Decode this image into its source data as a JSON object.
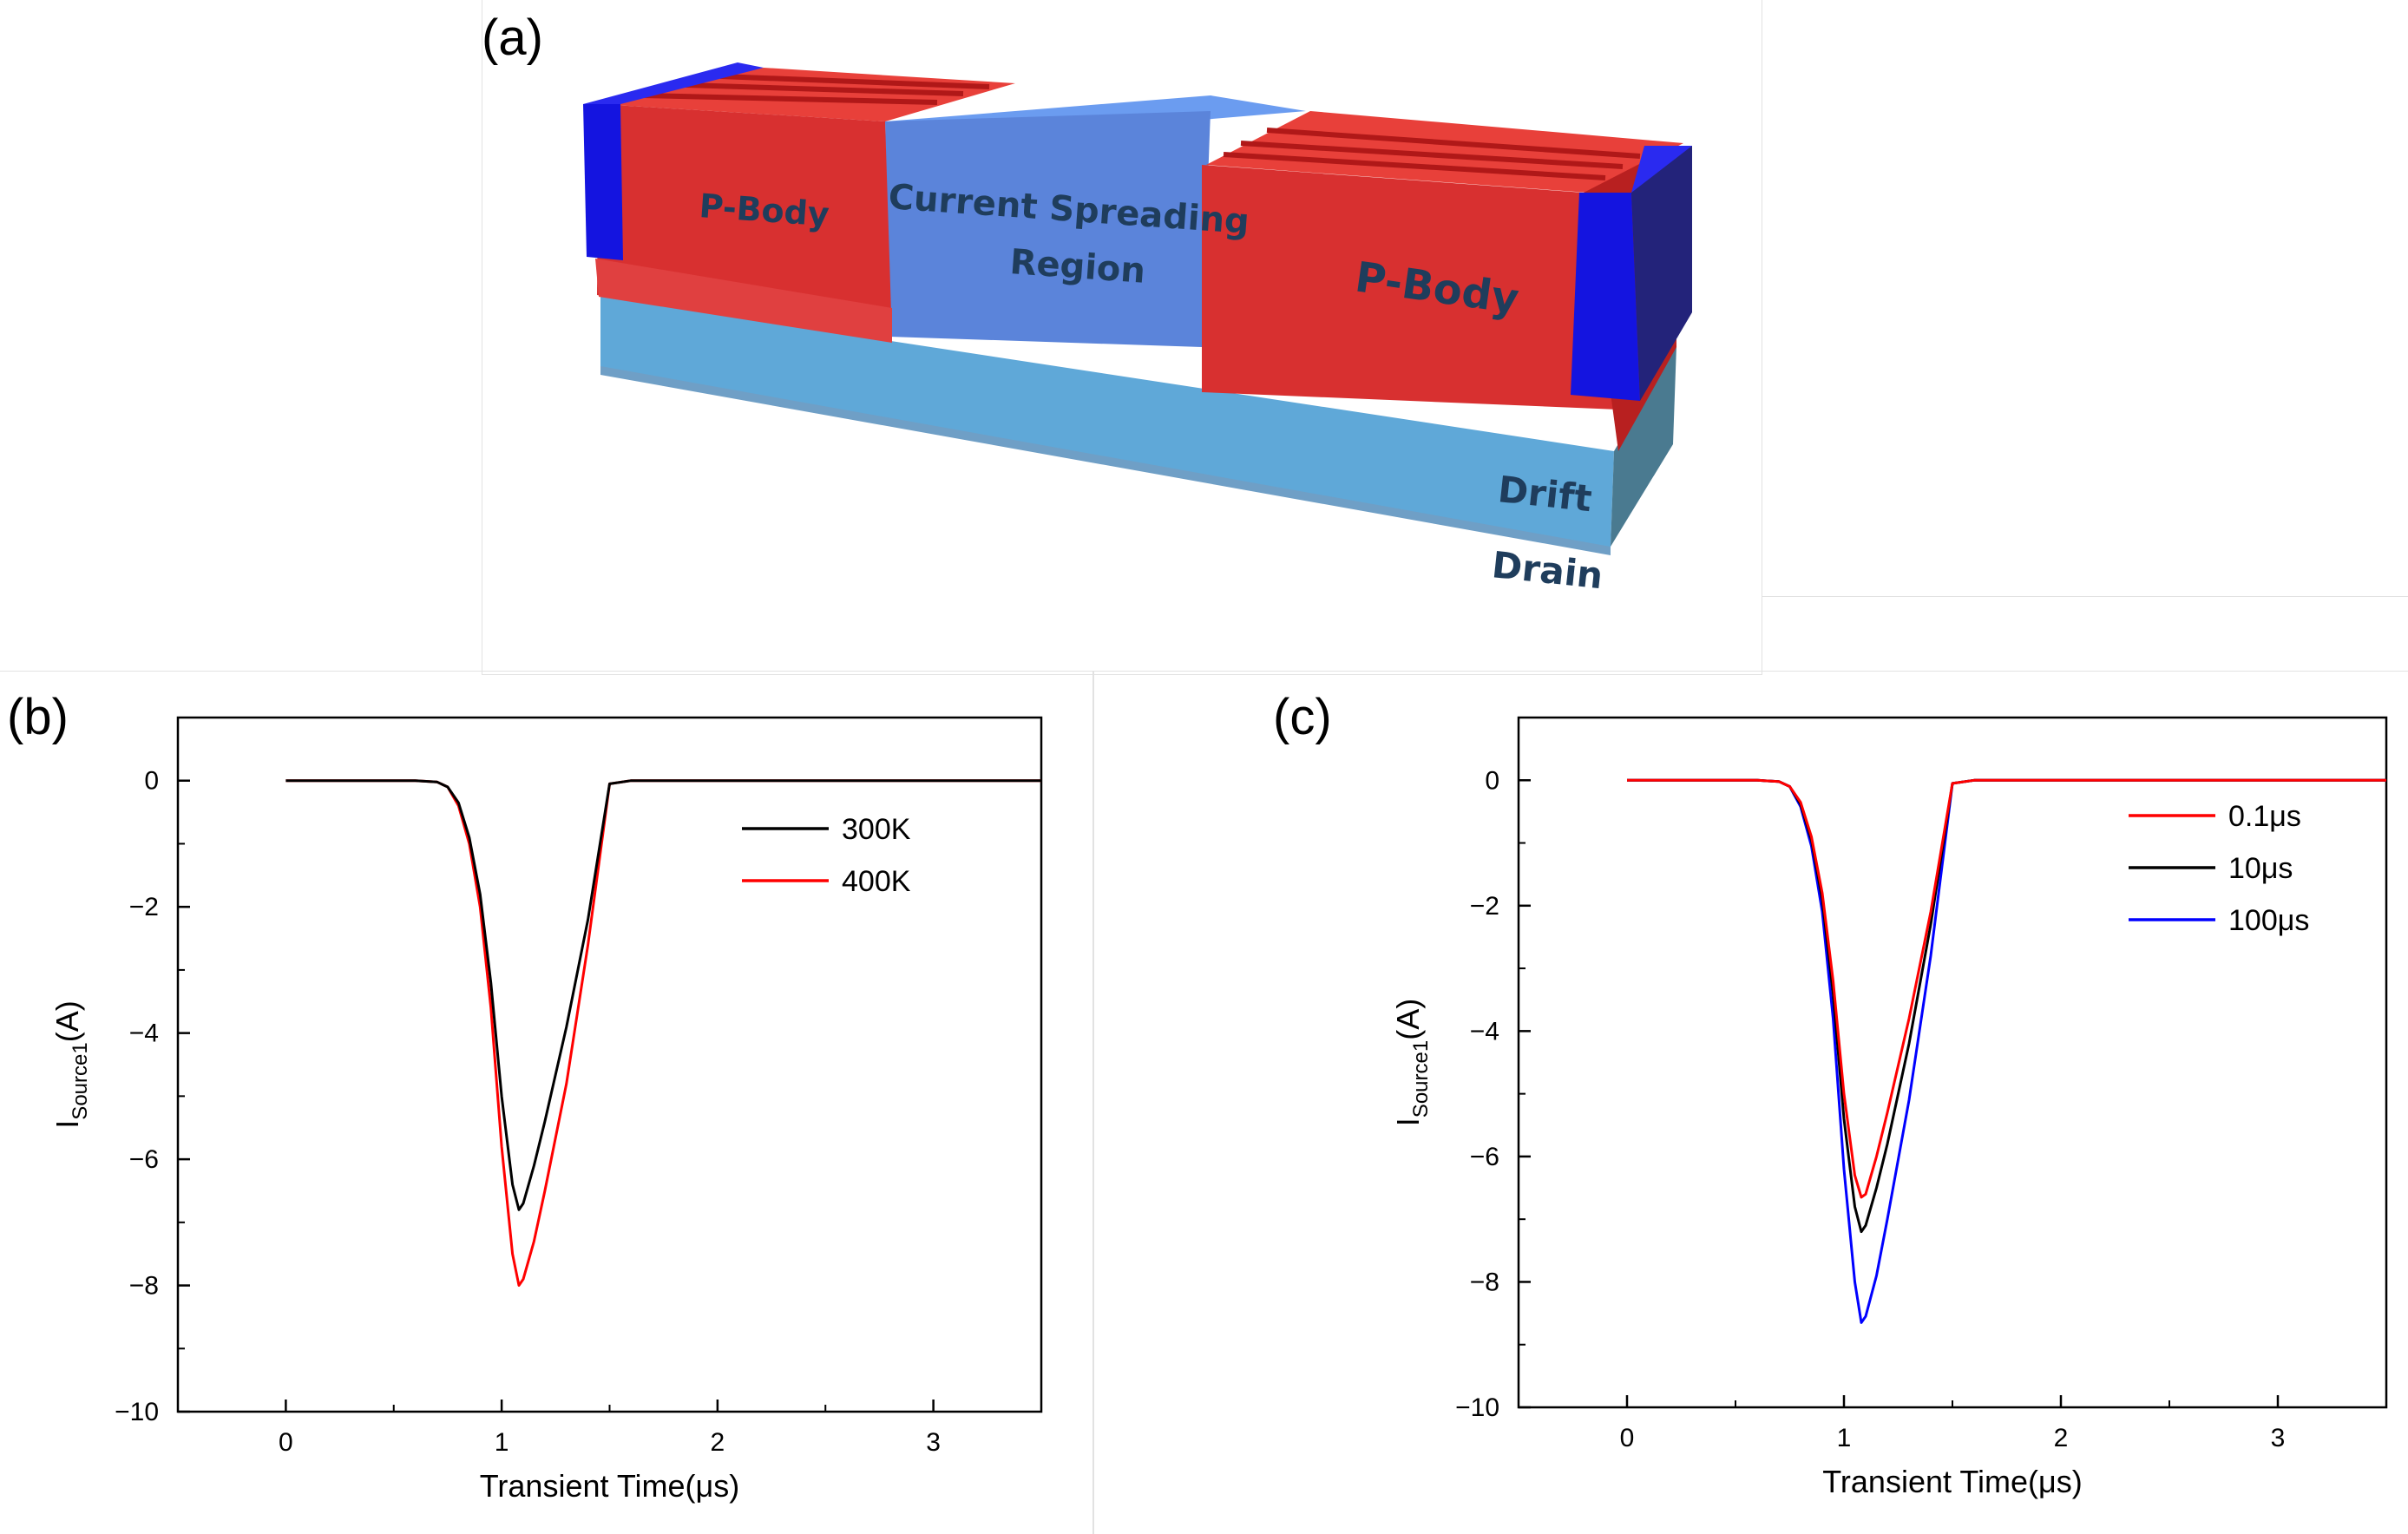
{
  "panels": {
    "a": "(a)",
    "b": "(b)",
    "c": "(c)"
  },
  "device": {
    "pbody_left": "P-Body",
    "pbody_right": "P-Body",
    "csr_line1": "Current Spreading",
    "csr_line2": "Region",
    "drift": "Drift",
    "drain": "Drain",
    "colors": {
      "pbody": "#e0282a",
      "csr": "#5b8fe6",
      "drift": "#5fa8d8",
      "source": "#1414e0"
    }
  },
  "chart_data": [
    {
      "id": "b",
      "type": "line",
      "xlabel": "Transient Time(μs)",
      "ylabel_main": "I",
      "ylabel_sub": "Source1",
      "ylabel_unit": "(A)",
      "xlim": [
        -0.5,
        3.5
      ],
      "ylim": [
        -10,
        1
      ],
      "xticks": [
        0,
        1,
        2,
        3
      ],
      "yticks": [
        0,
        -2,
        -4,
        -6,
        -8,
        -10
      ],
      "xticklabels": [
        "0",
        "1",
        "2",
        "3"
      ],
      "yticklabels": [
        "0",
        "−2",
        "−4",
        "−6",
        "−8",
        "−10"
      ],
      "legend_position": "top-right",
      "series": [
        {
          "name": "300K",
          "color": "#000000",
          "x": [
            0,
            0.6,
            0.7,
            0.75,
            0.8,
            0.85,
            0.9,
            0.95,
            1.0,
            1.05,
            1.08,
            1.1,
            1.15,
            1.2,
            1.3,
            1.4,
            1.5,
            1.6,
            2.0,
            3.5
          ],
          "y": [
            0,
            0,
            -0.02,
            -0.1,
            -0.35,
            -0.9,
            -1.8,
            -3.2,
            -5.0,
            -6.4,
            -6.8,
            -6.7,
            -6.1,
            -5.4,
            -3.9,
            -2.2,
            -0.05,
            0,
            0,
            0
          ]
        },
        {
          "name": "400K",
          "color": "#ff0000",
          "x": [
            0,
            0.6,
            0.7,
            0.75,
            0.8,
            0.85,
            0.9,
            0.95,
            1.0,
            1.05,
            1.08,
            1.1,
            1.15,
            1.2,
            1.3,
            1.4,
            1.5,
            1.6,
            2.0,
            3.5
          ],
          "y": [
            0,
            0,
            -0.02,
            -0.1,
            -0.4,
            -1.0,
            -2.0,
            -3.6,
            -5.8,
            -7.5,
            -8.0,
            -7.9,
            -7.3,
            -6.5,
            -4.8,
            -2.6,
            -0.05,
            0,
            0,
            0
          ]
        }
      ]
    },
    {
      "id": "c",
      "type": "line",
      "xlabel": "Transient Time(μs)",
      "ylabel_main": "I",
      "ylabel_sub": "Source1",
      "ylabel_unit": "(A)",
      "xlim": [
        -0.5,
        3.5
      ],
      "ylim": [
        -10,
        1
      ],
      "xticks": [
        0,
        1,
        2,
        3
      ],
      "yticks": [
        0,
        -2,
        -4,
        -6,
        -8,
        -10
      ],
      "xticklabels": [
        "0",
        "1",
        "2",
        "3"
      ],
      "yticklabels": [
        "0",
        "−2",
        "−4",
        "−6",
        "−8",
        "−10"
      ],
      "legend_position": "top-right",
      "series": [
        {
          "name": "0.1μs",
          "color": "#ff0000",
          "x": [
            0,
            0.6,
            0.7,
            0.75,
            0.8,
            0.85,
            0.9,
            0.95,
            1.0,
            1.05,
            1.08,
            1.1,
            1.15,
            1.2,
            1.3,
            1.4,
            1.5,
            1.6,
            2.0,
            3.5
          ],
          "y": [
            0,
            0,
            -0.02,
            -0.1,
            -0.35,
            -0.9,
            -1.8,
            -3.2,
            -5.0,
            -6.3,
            -6.65,
            -6.6,
            -6.0,
            -5.3,
            -3.8,
            -2.1,
            -0.05,
            0,
            0,
            0
          ]
        },
        {
          "name": "10μs",
          "color": "#000000",
          "x": [
            0,
            0.6,
            0.7,
            0.75,
            0.8,
            0.85,
            0.9,
            0.95,
            1.0,
            1.05,
            1.08,
            1.1,
            1.15,
            1.2,
            1.3,
            1.4,
            1.5,
            1.6,
            2.0,
            3.5
          ],
          "y": [
            0,
            0,
            -0.02,
            -0.1,
            -0.38,
            -0.95,
            -1.9,
            -3.4,
            -5.4,
            -6.8,
            -7.2,
            -7.1,
            -6.5,
            -5.8,
            -4.2,
            -2.3,
            -0.05,
            0,
            0,
            0
          ]
        },
        {
          "name": "100μs",
          "color": "#0000ff",
          "x": [
            0,
            0.6,
            0.7,
            0.75,
            0.8,
            0.85,
            0.9,
            0.95,
            1.0,
            1.05,
            1.08,
            1.1,
            1.15,
            1.2,
            1.3,
            1.4,
            1.5,
            1.6,
            2.0,
            3.5
          ],
          "y": [
            0,
            0,
            -0.02,
            -0.1,
            -0.42,
            -1.05,
            -2.1,
            -3.8,
            -6.2,
            -8.0,
            -8.65,
            -8.55,
            -7.9,
            -7.0,
            -5.1,
            -2.8,
            -0.05,
            0,
            0,
            0
          ]
        }
      ]
    }
  ]
}
